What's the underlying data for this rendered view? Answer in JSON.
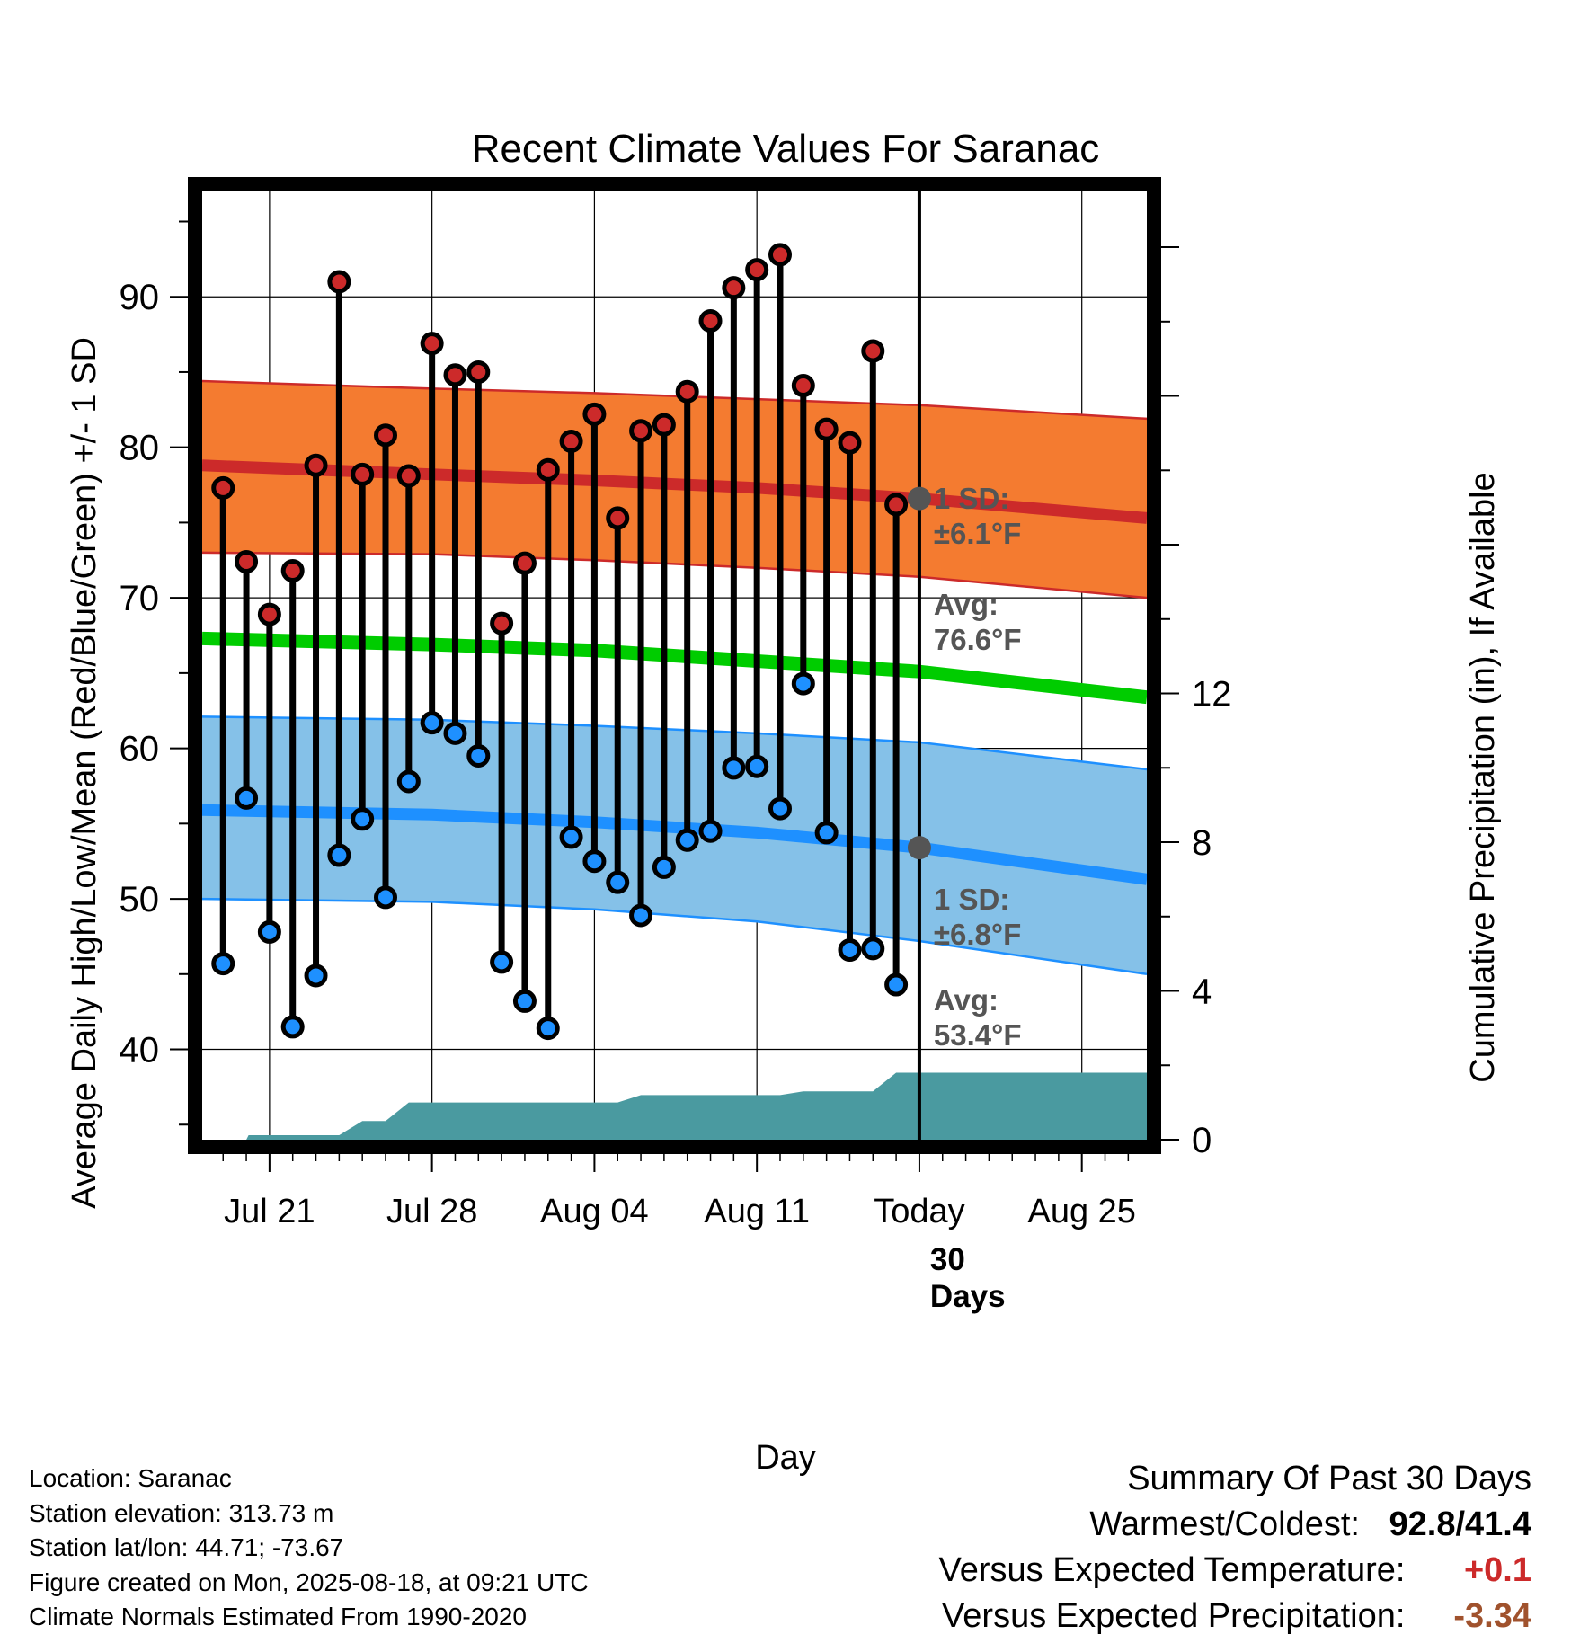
{
  "title": "Recent Climate Values For Saranac",
  "xlabel": "Day",
  "ylabel_left": "Average Daily High/Low/Mean (Red/Blue/Green) +/- 1 SD",
  "ylabel_right": "Cumulative Precipitation (in), If Available",
  "colors": {
    "high_band": "#f47b30",
    "high_avg": "#cc2a2a",
    "low_band": "#85c1e8",
    "low_avg": "#1e90ff",
    "mean": "#00cc00",
    "precip": "#4a9aa0",
    "high_marker": "#cc2a2a",
    "low_marker": "#1e90ff",
    "warm_text": "#cc2a2a",
    "precip_text": "#a0522d",
    "annotation": "#555555"
  },
  "annotations": {
    "high_sd_line1": "1 SD:",
    "high_sd_line2": "±6.1°F",
    "high_avg_line1": "Avg:",
    "high_avg_line2": "76.6°F",
    "low_sd_line1": "1 SD:",
    "low_sd_line2": "±6.8°F",
    "low_avg_line1": "Avg:",
    "low_avg_line2": "53.4°F",
    "days_line1": "30",
    "days_line2": "Days"
  },
  "info": {
    "location": "Location: Saranac",
    "elevation": "Station elevation: 313.73 m",
    "latlon": "Station lat/lon: 44.71; -73.67",
    "created": "Figure created on Mon, 2025-08-18, at 09:21 UTC",
    "normals": "Climate Normals Estimated From 1990-2020"
  },
  "summary": {
    "heading": "Summary Of Past 30 Days",
    "warmest_label": "Warmest/Coldest:",
    "warmest_value": "92.8/41.4",
    "temp_label": "Versus Expected Temperature:",
    "temp_value": "+0.1",
    "precip_label": "Versus Expected Precipitation:",
    "precip_value": "-3.34"
  },
  "chart_data": {
    "type": "line",
    "x_unit": "day",
    "x_range": [
      -30.9,
      9.8
    ],
    "ylim": [
      34,
      97
    ],
    "ylim_right": [
      0,
      25.5
    ],
    "grid": true,
    "x_ticks": [
      {
        "day": -28,
        "label": "Jul 21"
      },
      {
        "day": -21,
        "label": "Jul 28"
      },
      {
        "day": -14,
        "label": "Aug 04"
      },
      {
        "day": -7,
        "label": "Aug 11"
      },
      {
        "day": 0,
        "label": "Today"
      },
      {
        "day": 7,
        "label": "Aug 25"
      }
    ],
    "y_ticks": [
      40,
      50,
      60,
      70,
      80,
      90
    ],
    "y_ticks_right": [
      0,
      4,
      8,
      12
    ],
    "days": [
      -30,
      -29,
      -28,
      -27,
      -26,
      -25,
      -24,
      -23,
      -22,
      -21,
      -20,
      -19,
      -18,
      -17,
      -16,
      -15,
      -14,
      -13,
      -12,
      -11,
      -10,
      -9,
      -8,
      -7,
      -6,
      -5,
      -4,
      -3,
      -2,
      -1
    ],
    "highs": [
      77.3,
      72.4,
      68.9,
      71.8,
      78.8,
      91.0,
      78.2,
      80.8,
      78.1,
      86.9,
      84.8,
      85.0,
      68.3,
      72.3,
      78.5,
      80.4,
      82.2,
      75.3,
      81.1,
      81.5,
      83.7,
      88.4,
      90.6,
      91.8,
      92.8,
      84.1,
      81.2,
      80.3,
      86.4,
      76.2
    ],
    "lows": [
      45.7,
      56.7,
      47.8,
      41.5,
      44.9,
      52.9,
      55.3,
      50.1,
      57.8,
      61.7,
      61.0,
      59.5,
      45.8,
      43.2,
      41.4,
      54.1,
      52.5,
      51.1,
      48.9,
      52.1,
      53.9,
      54.5,
      58.7,
      58.8,
      56.0,
      64.3,
      54.4,
      46.6,
      46.7,
      44.3
    ],
    "normal_high": [
      {
        "day": -30.9,
        "avg": 78.8,
        "sd_low": 73.0,
        "sd_high": 84.4
      },
      {
        "day": -21,
        "avg": 78.2,
        "sd_low": 72.9,
        "sd_high": 83.9
      },
      {
        "day": -14,
        "avg": 77.8,
        "sd_low": 72.5,
        "sd_high": 83.6
      },
      {
        "day": -7,
        "avg": 77.3,
        "sd_low": 72.0,
        "sd_high": 83.2
      },
      {
        "day": 0,
        "avg": 76.6,
        "sd_low": 71.4,
        "sd_high": 82.8
      },
      {
        "day": 9.8,
        "avg": 75.3,
        "sd_low": 70.0,
        "sd_high": 81.9
      }
    ],
    "normal_mean": [
      {
        "day": -30.9,
        "avg": 67.3
      },
      {
        "day": -21,
        "avg": 66.9
      },
      {
        "day": -14,
        "avg": 66.5
      },
      {
        "day": -7,
        "avg": 65.8
      },
      {
        "day": 0,
        "avg": 65.1
      },
      {
        "day": 9.8,
        "avg": 63.4
      }
    ],
    "normal_low": [
      {
        "day": -30.9,
        "avg": 55.9,
        "sd_low": 50.0,
        "sd_high": 62.1
      },
      {
        "day": -21,
        "avg": 55.6,
        "sd_low": 49.8,
        "sd_high": 61.9
      },
      {
        "day": -14,
        "avg": 55.1,
        "sd_low": 49.3,
        "sd_high": 61.5
      },
      {
        "day": -7,
        "avg": 54.4,
        "sd_low": 48.5,
        "sd_high": 61.0
      },
      {
        "day": 0,
        "avg": 53.4,
        "sd_low": 47.2,
        "sd_high": 60.4
      },
      {
        "day": 9.8,
        "avg": 51.3,
        "sd_low": 45.0,
        "sd_high": 58.6
      }
    ],
    "precip_cumulative": [
      {
        "day": -30.9,
        "in": 0.0
      },
      {
        "day": -29,
        "in": 0.0
      },
      {
        "day": -28.9,
        "in": 0.12
      },
      {
        "day": -25,
        "in": 0.12
      },
      {
        "day": -24,
        "in": 0.5
      },
      {
        "day": -23,
        "in": 0.5
      },
      {
        "day": -22,
        "in": 1.0
      },
      {
        "day": -13,
        "in": 1.0
      },
      {
        "day": -12,
        "in": 1.2
      },
      {
        "day": -6,
        "in": 1.2
      },
      {
        "day": -5,
        "in": 1.3
      },
      {
        "day": -2,
        "in": 1.3
      },
      {
        "day": -1,
        "in": 1.8
      },
      {
        "day": 9.8,
        "in": 1.8
      }
    ]
  }
}
